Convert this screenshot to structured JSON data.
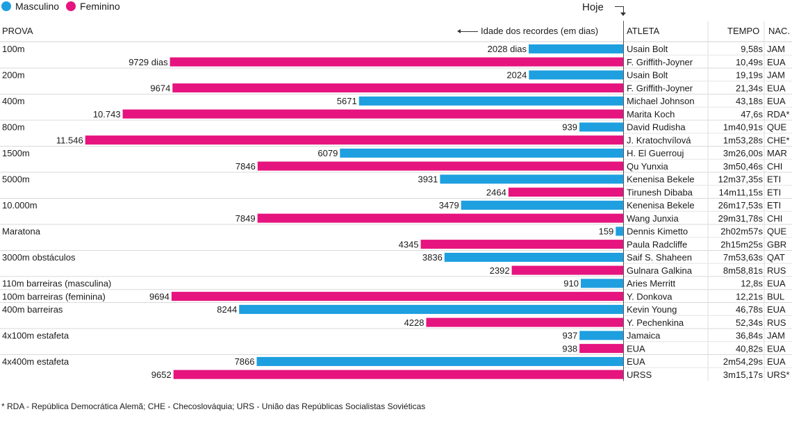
{
  "legend": [
    {
      "label": "Masculino",
      "color": "#1e9fe0"
    },
    {
      "label": "Feminino",
      "color": "#e6147f"
    }
  ],
  "header": {
    "hoje": "Hoje",
    "prova": "PROVA",
    "axis_note": "Idade dos recordes (em dias)",
    "atleta": "ATLETA",
    "tempo": "TEMPO",
    "nac": "NAC."
  },
  "footnote": "* RDA - República Democrática Alemã; CHE - Checoslováquia; URS - União das Repúblicas Socialistas Soviéticas",
  "chart_data": {
    "type": "bar",
    "orientation": "horizontal",
    "x_direction": "right-to-left",
    "series_names": [
      "Masculino",
      "Feminino"
    ],
    "rows": [
      {
        "event": "100m",
        "sex": "M",
        "days": 2028,
        "label": "2028 dias",
        "athlete": "Usain Bolt",
        "time": "9,58s",
        "nat": "JAM"
      },
      {
        "event": "",
        "sex": "F",
        "days": 9729,
        "label": "9729 dias",
        "athlete": "F. Griffith-Joyner",
        "time": "10,49s",
        "nat": "EUA"
      },
      {
        "event": "200m",
        "sex": "M",
        "days": 2024,
        "label": "2024",
        "athlete": "Usain Bolt",
        "time": "19,19s",
        "nat": "JAM"
      },
      {
        "event": "",
        "sex": "F",
        "days": 9674,
        "label": "9674",
        "athlete": "F. Griffith-Joyner",
        "time": "21,34s",
        "nat": "EUA"
      },
      {
        "event": "400m",
        "sex": "M",
        "days": 5671,
        "label": "5671",
        "athlete": "Michael Johnson",
        "time": "43,18s",
        "nat": "EUA"
      },
      {
        "event": "",
        "sex": "F",
        "days": 10743,
        "label": "10.743",
        "athlete": "Marita Koch",
        "time": "47,6s",
        "nat": "RDA*"
      },
      {
        "event": "800m",
        "sex": "M",
        "days": 939,
        "label": "939",
        "athlete": "David Rudisha",
        "time": "1m40,91s",
        "nat": "QUE"
      },
      {
        "event": "",
        "sex": "F",
        "days": 11546,
        "label": "11.546",
        "athlete": "J. Kratochvílová",
        "time": "1m53,28s",
        "nat": "CHE*"
      },
      {
        "event": "1500m",
        "sex": "M",
        "days": 6079,
        "label": "6079",
        "athlete": "H. El Guerrouj",
        "time": "3m26,00s",
        "nat": "MAR"
      },
      {
        "event": "",
        "sex": "F",
        "days": 7846,
        "label": "7846",
        "athlete": "Qu Yunxia",
        "time": "3m50,46s",
        "nat": "CHI"
      },
      {
        "event": "5000m",
        "sex": "M",
        "days": 3931,
        "label": "3931",
        "athlete": "Kenenisa Bekele",
        "time": "12m37,35s",
        "nat": "ETI"
      },
      {
        "event": "",
        "sex": "F",
        "days": 2464,
        "label": "2464",
        "athlete": "Tirunesh Dibaba",
        "time": "14m11,15s",
        "nat": "ETI"
      },
      {
        "event": "10.000m",
        "sex": "M",
        "days": 3479,
        "label": "3479",
        "athlete": "Kenenisa Bekele",
        "time": "26m17,53s",
        "nat": "ETI"
      },
      {
        "event": "",
        "sex": "F",
        "days": 7849,
        "label": "7849",
        "athlete": "Wang Junxia",
        "time": "29m31,78s",
        "nat": "CHI"
      },
      {
        "event": "Maratona",
        "sex": "M",
        "days": 159,
        "label": "159",
        "athlete": "Dennis Kimetto",
        "time": "2h02m57s",
        "nat": "QUE"
      },
      {
        "event": "",
        "sex": "F",
        "days": 4345,
        "label": "4345",
        "athlete": "Paula Radcliffe",
        "time": "2h15m25s",
        "nat": "GBR"
      },
      {
        "event": "3000m obstáculos",
        "sex": "M",
        "days": 3836,
        "label": "3836",
        "athlete": "Saif S. Shaheen",
        "time": "7m53,63s",
        "nat": "QAT"
      },
      {
        "event": "",
        "sex": "F",
        "days": 2392,
        "label": "2392",
        "athlete": "Gulnara Galkina",
        "time": "8m58,81s",
        "nat": "RUS"
      },
      {
        "event": "110m barreiras (masculina)",
        "sex": "M",
        "days": 910,
        "label": "910",
        "athlete": "Aries Merritt",
        "time": "12,8s",
        "nat": "EUA"
      },
      {
        "event": "100m barreiras (feminina)",
        "sex": "F",
        "days": 9694,
        "label": "9694",
        "athlete": "Y. Donkova",
        "time": "12,21s",
        "nat": "BUL"
      },
      {
        "event": "400m barreiras",
        "sex": "M",
        "days": 8244,
        "label": "8244",
        "athlete": "Kevin Young",
        "time": "46,78s",
        "nat": "EUA"
      },
      {
        "event": "",
        "sex": "F",
        "days": 4228,
        "label": "4228",
        "athlete": "Y. Pechenkina",
        "time": "52,34s",
        "nat": "RUS"
      },
      {
        "event": "4x100m estafeta",
        "sex": "M",
        "days": 937,
        "label": "937",
        "athlete": "Jamaica",
        "time": "36,84s",
        "nat": "JAM"
      },
      {
        "event": "",
        "sex": "F",
        "days": 938,
        "label": "938",
        "athlete": "EUA",
        "time": "40,82s",
        "nat": "EUA"
      },
      {
        "event": "4x400m estafeta",
        "sex": "M",
        "days": 7866,
        "label": "7866",
        "athlete": "EUA",
        "time": "2m54,29s",
        "nat": "EUA"
      },
      {
        "event": "",
        "sex": "F",
        "days": 9652,
        "label": "9652",
        "athlete": "URSS",
        "time": "3m15,17s",
        "nat": "URS*"
      }
    ]
  }
}
